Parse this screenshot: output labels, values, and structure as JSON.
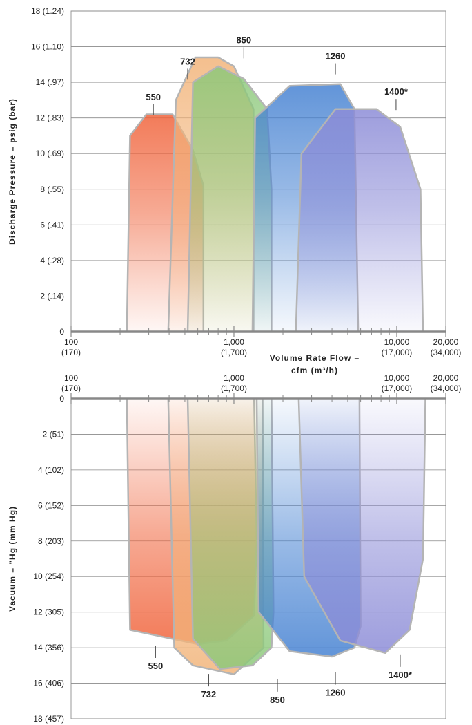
{
  "chart_data": [
    {
      "type": "area",
      "panel": "pressure",
      "ylabel": "Discharge Pressure – psig (bar)",
      "xlabel_line1": "Volume Rate Flow –",
      "xlabel_line2": "cfm (m³/h)",
      "x_scale": "log",
      "xlim": [
        100,
        20000
      ],
      "ylim": [
        0,
        18
      ],
      "grid": true,
      "y_ticks": [
        {
          "value": 0,
          "label": "0"
        },
        {
          "value": 2,
          "label": "2 (.14)"
        },
        {
          "value": 4,
          "label": "4 (.28)"
        },
        {
          "value": 6,
          "label": "6 (.41)"
        },
        {
          "value": 8,
          "label": "8 (.55)"
        },
        {
          "value": 10,
          "label": "10 (.69)"
        },
        {
          "value": 12,
          "label": "12 (.83)"
        },
        {
          "value": 14,
          "label": "14 (.97)"
        },
        {
          "value": 16,
          "label": "16 (1.10)"
        },
        {
          "value": 18,
          "label": "18 (1.24)"
        }
      ],
      "x_ticks": [
        {
          "value": 100,
          "label1": "100",
          "label2": "(170)"
        },
        {
          "value": 1000,
          "label1": "1,000",
          "label2": "(1,700)"
        },
        {
          "value": 10000,
          "label1": "10,000",
          "label2": "(17,000)"
        },
        {
          "value": 20000,
          "label1": "20,000",
          "label2": "(34,000)"
        }
      ],
      "series": [
        {
          "name": "550",
          "color": "#f0643c",
          "points": [
            [
              220,
              0
            ],
            [
              230,
              11
            ],
            [
              290,
              12.2
            ],
            [
              420,
              12.2
            ],
            [
              560,
              10.2
            ],
            [
              650,
              8.2
            ],
            [
              650,
              0
            ]
          ]
        },
        {
          "name": "732",
          "color": "#f2b47a",
          "points": [
            [
              395,
              0
            ],
            [
              440,
              13
            ],
            [
              580,
              15.4
            ],
            [
              800,
              15.4
            ],
            [
              1000,
              14.9
            ],
            [
              1320,
              12.5
            ],
            [
              1320,
              0
            ]
          ]
        },
        {
          "name": "850",
          "color": "#8cc87a",
          "points": [
            [
              520,
              0
            ],
            [
              560,
              14
            ],
            [
              800,
              14.9
            ],
            [
              1150,
              14.2
            ],
            [
              1600,
              12.5
            ],
            [
              1700,
              8
            ],
            [
              1700,
              0
            ]
          ]
        },
        {
          "name": "1260",
          "color": "#4682d2",
          "points": [
            [
              1300,
              0
            ],
            [
              1350,
              12
            ],
            [
              2200,
              13.8
            ],
            [
              4500,
              13.9
            ],
            [
              5500,
              12.5
            ],
            [
              5800,
              0
            ]
          ]
        },
        {
          "name": "1400*",
          "color": "#8c8cd7",
          "points": [
            [
              2400,
              0
            ],
            [
              2600,
              10
            ],
            [
              4200,
              12.5
            ],
            [
              7500,
              12.5
            ],
            [
              10500,
              11.5
            ],
            [
              14000,
              8
            ],
            [
              14500,
              0
            ]
          ]
        }
      ],
      "labels": [
        {
          "text": "550",
          "x": 320,
          "y": 13
        },
        {
          "text": "732",
          "x": 520,
          "y": 15
        },
        {
          "text": "850",
          "x": 1150,
          "y": 16.2
        },
        {
          "text": "1260",
          "x": 4200,
          "y": 15.3
        },
        {
          "text": "1400*",
          "x": 9900,
          "y": 13.3
        }
      ]
    },
    {
      "type": "area",
      "panel": "vacuum",
      "ylabel": "Vacuum – \"Hg (mm Hg)",
      "x_scale": "log",
      "xlim": [
        100,
        20000
      ],
      "ylim": [
        0,
        18
      ],
      "y_inverted": true,
      "grid": true,
      "y_ticks": [
        {
          "value": 0,
          "label": "0"
        },
        {
          "value": 2,
          "label": "2 (51)"
        },
        {
          "value": 4,
          "label": "4 (102)"
        },
        {
          "value": 6,
          "label": "6 (152)"
        },
        {
          "value": 8,
          "label": "8 (203)"
        },
        {
          "value": 10,
          "label": "10 (254)"
        },
        {
          "value": 12,
          "label": "12 (305)"
        },
        {
          "value": 14,
          "label": "14 (356)"
        },
        {
          "value": 16,
          "label": "16 (406)"
        },
        {
          "value": 18,
          "label": "18 (457)"
        }
      ],
      "x_ticks": [
        {
          "value": 100,
          "label1": "100",
          "label2": "(170)"
        },
        {
          "value": 1000,
          "label1": "1,000",
          "label2": "(1,700)"
        },
        {
          "value": 10000,
          "label1": "10,000",
          "label2": "(17,000)"
        },
        {
          "value": 20000,
          "label1": "20,000",
          "label2": "(34,000)"
        }
      ],
      "series": [
        {
          "name": "550",
          "color": "#f0643c",
          "points": [
            [
              220,
              0
            ],
            [
              230,
              13
            ],
            [
              600,
              13.8
            ],
            [
              900,
              13.6
            ],
            [
              1330,
              12.2
            ],
            [
              1380,
              8
            ],
            [
              1330,
              0
            ]
          ]
        },
        {
          "name": "732",
          "color": "#f2b47a",
          "points": [
            [
              395,
              0
            ],
            [
              430,
              14
            ],
            [
              560,
              15
            ],
            [
              1000,
              15.5
            ],
            [
              1520,
              14
            ],
            [
              1500,
              0
            ]
          ]
        },
        {
          "name": "850",
          "color": "#8cc87a",
          "points": [
            [
              520,
              0
            ],
            [
              560,
              13.5
            ],
            [
              820,
              15.2
            ],
            [
              1300,
              15
            ],
            [
              1700,
              14
            ],
            [
              1750,
              12
            ],
            [
              1700,
              0
            ]
          ]
        },
        {
          "name": "1260",
          "color": "#4682d2",
          "points": [
            [
              1380,
              0
            ],
            [
              1420,
              12
            ],
            [
              2200,
              14.2
            ],
            [
              4000,
              14.5
            ],
            [
              5500,
              14
            ],
            [
              6000,
              12.8
            ],
            [
              5900,
              0
            ]
          ]
        },
        {
          "name": "1400*",
          "color": "#8c8cd7",
          "points": [
            [
              2500,
              0
            ],
            [
              2700,
              10
            ],
            [
              4500,
              13.6
            ],
            [
              8500,
              14.3
            ],
            [
              12000,
              13
            ],
            [
              14500,
              9
            ],
            [
              15000,
              0
            ]
          ]
        }
      ],
      "labels": [
        {
          "text": "550",
          "x": 330,
          "y": 15.2
        },
        {
          "text": "732",
          "x": 700,
          "y": 16.8
        },
        {
          "text": "850",
          "x": 1850,
          "y": 17.1
        },
        {
          "text": "1260",
          "x": 4200,
          "y": 16.7
        },
        {
          "text": "1400*",
          "x": 10500,
          "y": 15.7
        }
      ]
    }
  ]
}
